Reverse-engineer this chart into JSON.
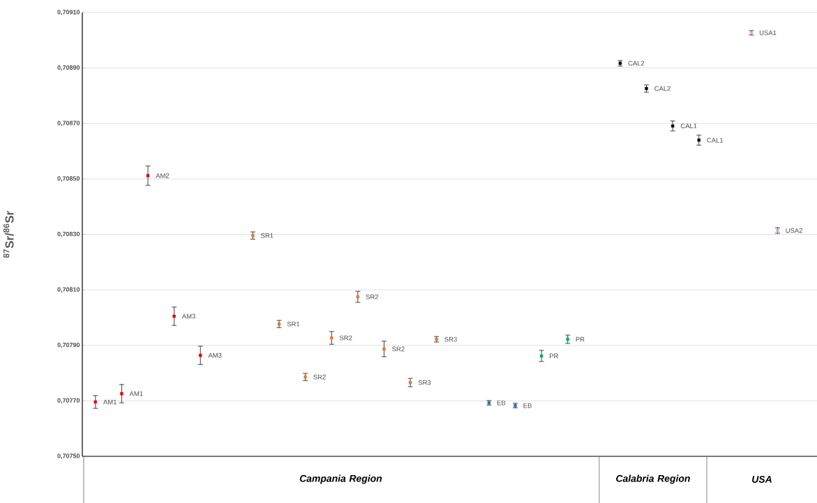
{
  "chart_data": {
    "type": "scatter",
    "ylabel": "$^{87}$Sr/$^{86}$Sr",
    "categories": [
      null,
      null,
      null,
      null,
      null,
      null,
      null,
      null,
      null,
      null,
      null,
      null,
      null,
      null,
      null,
      null,
      null,
      null,
      null,
      null,
      null,
      null,
      null,
      null,
      null,
      null,
      null,
      null
    ],
    "series": [
      {
        "name": "AM1",
        "color": "#e00000",
        "values": [
          0.707696,
          0.707726,
          null,
          null,
          null,
          null,
          null,
          null,
          null,
          null,
          null,
          null,
          null,
          null,
          null,
          null,
          null,
          null,
          null,
          null,
          null,
          null,
          null,
          null,
          null,
          null,
          null,
          null
        ],
        "errors": [
          2.3e-05,
          3.3e-05,
          null,
          null,
          null,
          null,
          null,
          null,
          null,
          null,
          null,
          null,
          null,
          null,
          null,
          null,
          null,
          null,
          null,
          null,
          null,
          null,
          null,
          null,
          null,
          null,
          null,
          null
        ]
      },
      {
        "name": "AM2",
        "color": "#e00000",
        "values": [
          null,
          null,
          0.708512,
          null,
          null,
          null,
          null,
          null,
          null,
          null,
          null,
          null,
          null,
          null,
          null,
          null,
          null,
          null,
          null,
          null,
          null,
          null,
          null,
          null,
          null,
          null,
          null,
          null
        ],
        "errors": [
          null,
          null,
          3.5e-05,
          null,
          null,
          null,
          null,
          null,
          null,
          null,
          null,
          null,
          null,
          null,
          null,
          null,
          null,
          null,
          null,
          null,
          null,
          null,
          null,
          null,
          null,
          null,
          null,
          null
        ]
      },
      {
        "name": "AM3",
        "color": "#e00000",
        "values": [
          null,
          null,
          null,
          0.708005,
          0.707864,
          null,
          null,
          null,
          null,
          null,
          null,
          null,
          null,
          null,
          null,
          null,
          null,
          null,
          null,
          null,
          null,
          null,
          null,
          null,
          null,
          null,
          null,
          null
        ],
        "errors": [
          null,
          null,
          null,
          3.3e-05,
          3.3e-05,
          null,
          null,
          null,
          null,
          null,
          null,
          null,
          null,
          null,
          null,
          null,
          null,
          null,
          null,
          null,
          null,
          null,
          null,
          null,
          null,
          null,
          null,
          null
        ]
      },
      {
        "name": "SR1",
        "color": "#e07b30",
        "values": [
          null,
          null,
          null,
          null,
          null,
          null,
          0.708296,
          0.707977,
          null,
          null,
          null,
          null,
          null,
          null,
          null,
          null,
          null,
          null,
          null,
          null,
          null,
          null,
          null,
          null,
          null,
          null,
          null,
          null
        ],
        "errors": [
          null,
          null,
          null,
          null,
          null,
          null,
          1.3e-05,
          1.3e-05,
          null,
          null,
          null,
          null,
          null,
          null,
          null,
          null,
          null,
          null,
          null,
          null,
          null,
          null,
          null,
          null,
          null,
          null,
          null,
          null
        ]
      },
      {
        "name": "SR2",
        "color": "#e07b30",
        "values": [
          null,
          null,
          null,
          null,
          null,
          null,
          null,
          null,
          0.707786,
          0.707927,
          0.708075,
          0.707887,
          null,
          null,
          null,
          null,
          null,
          null,
          null,
          null,
          null,
          null,
          null,
          null,
          null,
          null,
          null,
          null
        ],
        "errors": [
          null,
          null,
          null,
          null,
          null,
          null,
          null,
          null,
          1.3e-05,
          2.3e-05,
          2e-05,
          2.8e-05,
          null,
          null,
          null,
          null,
          null,
          null,
          null,
          null,
          null,
          null,
          null,
          null,
          null,
          null,
          null,
          null
        ]
      },
      {
        "name": "SR3",
        "color": "#e07b30",
        "values": [
          null,
          null,
          null,
          null,
          null,
          null,
          null,
          null,
          null,
          null,
          null,
          null,
          0.707766,
          0.707922,
          null,
          null,
          null,
          null,
          null,
          null,
          null,
          null,
          null,
          null,
          null,
          null,
          null,
          null
        ],
        "errors": [
          null,
          null,
          null,
          null,
          null,
          null,
          null,
          null,
          null,
          null,
          null,
          null,
          1.5e-05,
          1e-05,
          null,
          null,
          null,
          null,
          null,
          null,
          null,
          null,
          null,
          null,
          null,
          null,
          null,
          null
        ]
      },
      {
        "name": "EB",
        "color": "#2e75b6",
        "values": [
          null,
          null,
          null,
          null,
          null,
          null,
          null,
          null,
          null,
          null,
          null,
          null,
          null,
          null,
          null,
          0.707693,
          0.707683,
          null,
          null,
          null,
          null,
          null,
          null,
          null,
          null,
          null,
          null,
          null
        ],
        "errors": [
          null,
          null,
          null,
          null,
          null,
          null,
          null,
          null,
          null,
          null,
          null,
          null,
          null,
          null,
          null,
          8e-06,
          8e-06,
          null,
          null,
          null,
          null,
          null,
          null,
          null,
          null,
          null,
          null,
          null
        ]
      },
      {
        "name": "PR",
        "color": "#00b050",
        "values": [
          null,
          null,
          null,
          null,
          null,
          null,
          null,
          null,
          null,
          null,
          null,
          null,
          null,
          null,
          null,
          null,
          null,
          0.707862,
          0.707922,
          null,
          null,
          null,
          null,
          null,
          null,
          null,
          null,
          null
        ],
        "errors": [
          null,
          null,
          null,
          null,
          null,
          null,
          null,
          null,
          null,
          null,
          null,
          null,
          null,
          null,
          null,
          null,
          null,
          2e-05,
          1.5e-05,
          null,
          null,
          null,
          null,
          null,
          null,
          null,
          null,
          null
        ]
      },
      {
        "name": "CAL2",
        "color": "#000000",
        "values": [
          null,
          null,
          null,
          null,
          null,
          null,
          null,
          null,
          null,
          null,
          null,
          null,
          null,
          null,
          null,
          null,
          null,
          null,
          null,
          null,
          0.708917,
          0.708826,
          null,
          null,
          null,
          null,
          null,
          null
        ],
        "errors": [
          null,
          null,
          null,
          null,
          null,
          null,
          null,
          null,
          null,
          null,
          null,
          null,
          null,
          null,
          null,
          null,
          null,
          null,
          null,
          null,
          1e-05,
          1.3e-05,
          null,
          null,
          null,
          null,
          null,
          null
        ]
      },
      {
        "name": "CAL1",
        "color": "#000000",
        "values": [
          null,
          null,
          null,
          null,
          null,
          null,
          null,
          null,
          null,
          null,
          null,
          null,
          null,
          null,
          null,
          null,
          null,
          null,
          null,
          null,
          null,
          null,
          0.708691,
          0.70864,
          null,
          null,
          null,
          null
        ],
        "errors": [
          null,
          null,
          null,
          null,
          null,
          null,
          null,
          null,
          null,
          null,
          null,
          null,
          null,
          null,
          null,
          null,
          null,
          null,
          null,
          null,
          null,
          null,
          1.8e-05,
          1.8e-05,
          null,
          null,
          null,
          null
        ]
      },
      {
        "name": "USA1",
        "color": "#e6a0e6",
        "values": [
          null,
          null,
          null,
          null,
          null,
          null,
          null,
          null,
          null,
          null,
          null,
          null,
          null,
          null,
          null,
          null,
          null,
          null,
          null,
          null,
          null,
          null,
          null,
          null,
          null,
          0.709027,
          null,
          null
        ],
        "errors": [
          null,
          null,
          null,
          null,
          null,
          null,
          null,
          null,
          null,
          null,
          null,
          null,
          null,
          null,
          null,
          null,
          null,
          null,
          null,
          null,
          null,
          null,
          null,
          null,
          null,
          8e-06,
          null,
          null
        ]
      },
      {
        "name": "USA2",
        "color": "#e6a0e6",
        "values": [
          null,
          null,
          null,
          null,
          null,
          null,
          null,
          null,
          null,
          null,
          null,
          null,
          null,
          null,
          null,
          null,
          null,
          null,
          null,
          null,
          null,
          null,
          null,
          null,
          null,
          null,
          0.708314,
          null
        ],
        "errors": [
          null,
          null,
          null,
          null,
          null,
          null,
          null,
          null,
          null,
          null,
          null,
          null,
          null,
          null,
          null,
          null,
          null,
          null,
          null,
          null,
          null,
          null,
          null,
          null,
          null,
          null,
          1e-05,
          null
        ]
      }
    ],
    "ylim": [
      0.7075,
      0.7091
    ],
    "yticks": [
      {
        "value": 0.7075,
        "label": "0,70750"
      },
      {
        "value": 0.7077,
        "label": "0,70770"
      },
      {
        "value": 0.7079,
        "label": "0,70790"
      },
      {
        "value": 0.7081,
        "label": "0,70810"
      },
      {
        "value": 0.7083,
        "label": "0,70830"
      },
      {
        "value": 0.7085,
        "label": "0,70850"
      },
      {
        "value": 0.7087,
        "label": "0,70870"
      },
      {
        "value": 0.7089,
        "label": "0,70890"
      },
      {
        "value": 0.7091,
        "label": "0,70910"
      }
    ],
    "grid": "y",
    "marker": "square",
    "annotations": [
      "Campania  Region",
      "Calabria Region",
      "USA"
    ]
  }
}
